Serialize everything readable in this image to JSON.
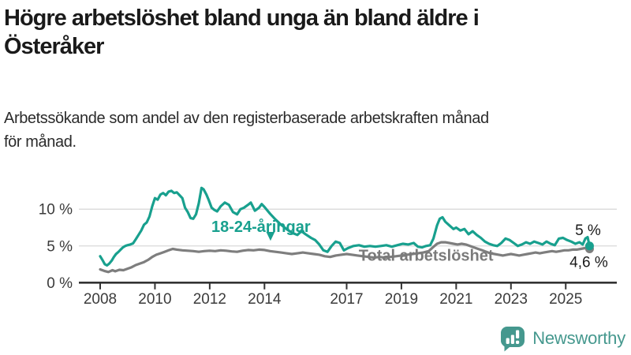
{
  "header": {
    "title_lines": [
      "Högre arbetslöshet bland unga än bland äldre i",
      "Österåker"
    ],
    "subtitle_lines": [
      "Arbetssökande som andel av den registerbaserade arbetskraften månad",
      "för månad."
    ]
  },
  "chart_data": {
    "type": "line",
    "unit": "%",
    "x_axis": {
      "ticks": [
        2008,
        2010,
        2012,
        2014,
        2017,
        2019,
        2021,
        2023,
        2025
      ],
      "range": [
        2007.25,
        2026.9
      ]
    },
    "y_axis": {
      "ticks": [
        {
          "label": "0 %",
          "value": 0
        },
        {
          "label": "5 %",
          "value": 5
        },
        {
          "label": "10 %",
          "value": 10
        }
      ],
      "range": [
        0,
        13.5
      ],
      "grid": true
    },
    "colors": {
      "young": "#18a08e",
      "total": "#7e7e7e",
      "grid": "#d9d9d9",
      "axis": "#333333"
    },
    "series": [
      {
        "name": "Total arbetslöshet",
        "color": "#7e7e7e",
        "end_label": "4,6 %",
        "end_value": 4.6,
        "label_pos": {
          "x": 2019.9,
          "y": 3.72
        },
        "points": [
          [
            2008.0,
            1.8
          ],
          [
            2008.15,
            1.6
          ],
          [
            2008.3,
            1.45
          ],
          [
            2008.45,
            1.7
          ],
          [
            2008.55,
            1.55
          ],
          [
            2008.7,
            1.75
          ],
          [
            2008.85,
            1.7
          ],
          [
            2009.0,
            1.9
          ],
          [
            2009.15,
            2.1
          ],
          [
            2009.3,
            2.4
          ],
          [
            2009.45,
            2.6
          ],
          [
            2009.6,
            2.8
          ],
          [
            2009.75,
            3.1
          ],
          [
            2009.9,
            3.5
          ],
          [
            2010.05,
            3.8
          ],
          [
            2010.2,
            4.0
          ],
          [
            2010.35,
            4.2
          ],
          [
            2010.5,
            4.4
          ],
          [
            2010.65,
            4.6
          ],
          [
            2010.8,
            4.5
          ],
          [
            2011.0,
            4.4
          ],
          [
            2011.2,
            4.35
          ],
          [
            2011.4,
            4.3
          ],
          [
            2011.6,
            4.2
          ],
          [
            2011.8,
            4.3
          ],
          [
            2012.0,
            4.35
          ],
          [
            2012.2,
            4.3
          ],
          [
            2012.4,
            4.4
          ],
          [
            2012.6,
            4.35
          ],
          [
            2012.8,
            4.25
          ],
          [
            2013.0,
            4.2
          ],
          [
            2013.2,
            4.35
          ],
          [
            2013.4,
            4.45
          ],
          [
            2013.6,
            4.4
          ],
          [
            2013.8,
            4.5
          ],
          [
            2014.0,
            4.45
          ],
          [
            2014.2,
            4.3
          ],
          [
            2014.4,
            4.2
          ],
          [
            2014.6,
            4.1
          ],
          [
            2014.8,
            4.0
          ],
          [
            2015.0,
            3.9
          ],
          [
            2015.2,
            4.0
          ],
          [
            2015.4,
            4.1
          ],
          [
            2015.6,
            4.0
          ],
          [
            2015.8,
            3.9
          ],
          [
            2016.0,
            3.8
          ],
          [
            2016.2,
            3.6
          ],
          [
            2016.4,
            3.5
          ],
          [
            2016.6,
            3.7
          ],
          [
            2016.8,
            3.8
          ],
          [
            2017.0,
            3.9
          ],
          [
            2017.2,
            3.8
          ],
          [
            2017.4,
            3.7
          ],
          [
            2017.6,
            3.6
          ],
          [
            2017.8,
            3.5
          ],
          [
            2018.0,
            3.4
          ],
          [
            2018.2,
            3.5
          ],
          [
            2018.4,
            3.4
          ],
          [
            2018.6,
            3.5
          ],
          [
            2018.8,
            3.6
          ],
          [
            2019.0,
            3.7
          ],
          [
            2019.2,
            3.8
          ],
          [
            2019.4,
            3.9
          ],
          [
            2019.6,
            4.0
          ],
          [
            2019.8,
            4.1
          ],
          [
            2020.0,
            4.3
          ],
          [
            2020.15,
            4.8
          ],
          [
            2020.3,
            5.3
          ],
          [
            2020.45,
            5.5
          ],
          [
            2020.6,
            5.5
          ],
          [
            2020.75,
            5.4
          ],
          [
            2020.9,
            5.3
          ],
          [
            2021.05,
            5.2
          ],
          [
            2021.2,
            5.3
          ],
          [
            2021.35,
            5.2
          ],
          [
            2021.5,
            5.0
          ],
          [
            2021.65,
            4.8
          ],
          [
            2021.8,
            4.6
          ],
          [
            2021.95,
            4.4
          ],
          [
            2022.1,
            4.2
          ],
          [
            2022.25,
            4.0
          ],
          [
            2022.4,
            3.9
          ],
          [
            2022.55,
            3.8
          ],
          [
            2022.7,
            3.7
          ],
          [
            2022.85,
            3.8
          ],
          [
            2023.0,
            3.9
          ],
          [
            2023.15,
            3.8
          ],
          [
            2023.3,
            3.7
          ],
          [
            2023.45,
            3.8
          ],
          [
            2023.6,
            3.9
          ],
          [
            2023.75,
            4.0
          ],
          [
            2023.9,
            4.1
          ],
          [
            2024.05,
            4.0
          ],
          [
            2024.2,
            4.1
          ],
          [
            2024.35,
            4.2
          ],
          [
            2024.5,
            4.3
          ],
          [
            2024.65,
            4.2
          ],
          [
            2024.8,
            4.3
          ],
          [
            2024.95,
            4.4
          ],
          [
            2025.1,
            4.4
          ],
          [
            2025.25,
            4.5
          ],
          [
            2025.4,
            4.5
          ],
          [
            2025.55,
            4.6
          ],
          [
            2025.7,
            4.7
          ],
          [
            2025.87,
            4.6
          ]
        ]
      },
      {
        "name": "18-24-åringar",
        "color": "#18a08e",
        "end_label": "5 %",
        "end_value": 5.0,
        "label_pos": {
          "x": 2013.87,
          "y": 7.65
        },
        "pointer": {
          "x": 2014.22,
          "y_tip": 5.7,
          "y_top": 6.9
        },
        "points": [
          [
            2008.0,
            3.6
          ],
          [
            2008.08,
            3.1
          ],
          [
            2008.17,
            2.5
          ],
          [
            2008.25,
            2.35
          ],
          [
            2008.33,
            2.6
          ],
          [
            2008.42,
            3.0
          ],
          [
            2008.5,
            3.5
          ],
          [
            2008.58,
            3.9
          ],
          [
            2008.67,
            4.2
          ],
          [
            2008.75,
            4.5
          ],
          [
            2008.83,
            4.8
          ],
          [
            2008.92,
            5.0
          ],
          [
            2009.0,
            5.1
          ],
          [
            2009.1,
            5.2
          ],
          [
            2009.2,
            5.35
          ],
          [
            2009.3,
            5.9
          ],
          [
            2009.4,
            6.5
          ],
          [
            2009.5,
            7.1
          ],
          [
            2009.6,
            7.9
          ],
          [
            2009.7,
            8.2
          ],
          [
            2009.8,
            9.0
          ],
          [
            2009.9,
            10.4
          ],
          [
            2010.0,
            11.5
          ],
          [
            2010.1,
            11.3
          ],
          [
            2010.2,
            12.0
          ],
          [
            2010.3,
            12.2
          ],
          [
            2010.4,
            11.9
          ],
          [
            2010.5,
            12.4
          ],
          [
            2010.6,
            12.5
          ],
          [
            2010.7,
            12.2
          ],
          [
            2010.8,
            12.3
          ],
          [
            2010.9,
            11.9
          ],
          [
            2011.0,
            11.5
          ],
          [
            2011.1,
            10.2
          ],
          [
            2011.2,
            9.6
          ],
          [
            2011.3,
            8.8
          ],
          [
            2011.4,
            8.7
          ],
          [
            2011.5,
            9.3
          ],
          [
            2011.6,
            10.8
          ],
          [
            2011.7,
            12.9
          ],
          [
            2011.78,
            12.7
          ],
          [
            2011.88,
            12.0
          ],
          [
            2011.97,
            11.2
          ],
          [
            2012.07,
            10.2
          ],
          [
            2012.17,
            9.9
          ],
          [
            2012.27,
            9.7
          ],
          [
            2012.4,
            10.4
          ],
          [
            2012.55,
            10.9
          ],
          [
            2012.7,
            10.6
          ],
          [
            2012.85,
            9.6
          ],
          [
            2013.0,
            9.3
          ],
          [
            2013.12,
            10.0
          ],
          [
            2013.25,
            10.2
          ],
          [
            2013.4,
            10.6
          ],
          [
            2013.5,
            10.9
          ],
          [
            2013.65,
            9.8
          ],
          [
            2013.8,
            10.2
          ],
          [
            2013.9,
            10.7
          ],
          [
            2014.0,
            10.3
          ],
          [
            2014.2,
            9.4
          ],
          [
            2014.4,
            8.6
          ],
          [
            2014.6,
            7.9
          ],
          [
            2014.8,
            7.3
          ],
          [
            2015.0,
            6.8
          ],
          [
            2015.2,
            6.5
          ],
          [
            2015.35,
            7.0
          ],
          [
            2015.5,
            6.6
          ],
          [
            2015.7,
            6.1
          ],
          [
            2015.85,
            5.8
          ],
          [
            2016.0,
            5.2
          ],
          [
            2016.15,
            4.4
          ],
          [
            2016.3,
            4.2
          ],
          [
            2016.45,
            5.0
          ],
          [
            2016.6,
            5.6
          ],
          [
            2016.75,
            5.4
          ],
          [
            2016.9,
            4.4
          ],
          [
            2017.05,
            4.7
          ],
          [
            2017.25,
            5.0
          ],
          [
            2017.45,
            5.1
          ],
          [
            2017.65,
            4.9
          ],
          [
            2017.85,
            5.0
          ],
          [
            2018.05,
            4.9
          ],
          [
            2018.25,
            5.0
          ],
          [
            2018.45,
            5.1
          ],
          [
            2018.65,
            4.9
          ],
          [
            2018.85,
            5.1
          ],
          [
            2019.05,
            5.3
          ],
          [
            2019.25,
            5.2
          ],
          [
            2019.45,
            5.4
          ],
          [
            2019.6,
            4.9
          ],
          [
            2019.75,
            4.8
          ],
          [
            2019.9,
            5.0
          ],
          [
            2020.05,
            5.1
          ],
          [
            2020.17,
            6.0
          ],
          [
            2020.3,
            7.8
          ],
          [
            2020.4,
            8.7
          ],
          [
            2020.5,
            8.9
          ],
          [
            2020.6,
            8.3
          ],
          [
            2020.75,
            7.8
          ],
          [
            2020.9,
            7.3
          ],
          [
            2021.0,
            7.5
          ],
          [
            2021.15,
            7.1
          ],
          [
            2021.3,
            7.3
          ],
          [
            2021.45,
            6.6
          ],
          [
            2021.6,
            7.0
          ],
          [
            2021.75,
            6.5
          ],
          [
            2021.9,
            6.1
          ],
          [
            2022.05,
            5.6
          ],
          [
            2022.2,
            5.3
          ],
          [
            2022.35,
            5.1
          ],
          [
            2022.5,
            5.0
          ],
          [
            2022.65,
            5.4
          ],
          [
            2022.8,
            6.0
          ],
          [
            2022.95,
            5.8
          ],
          [
            2023.1,
            5.4
          ],
          [
            2023.25,
            5.0
          ],
          [
            2023.4,
            5.2
          ],
          [
            2023.55,
            5.5
          ],
          [
            2023.7,
            5.3
          ],
          [
            2023.85,
            5.6
          ],
          [
            2024.0,
            5.4
          ],
          [
            2024.15,
            5.2
          ],
          [
            2024.3,
            5.6
          ],
          [
            2024.45,
            5.3
          ],
          [
            2024.6,
            5.1
          ],
          [
            2024.75,
            6.0
          ],
          [
            2024.9,
            6.1
          ],
          [
            2025.05,
            5.8
          ],
          [
            2025.2,
            5.6
          ],
          [
            2025.35,
            5.3
          ],
          [
            2025.5,
            5.5
          ],
          [
            2025.62,
            5.2
          ],
          [
            2025.72,
            6.0
          ],
          [
            2025.8,
            6.2
          ],
          [
            2025.87,
            5.0
          ]
        ]
      }
    ]
  },
  "footer": {
    "brand": "Newsworthy"
  }
}
